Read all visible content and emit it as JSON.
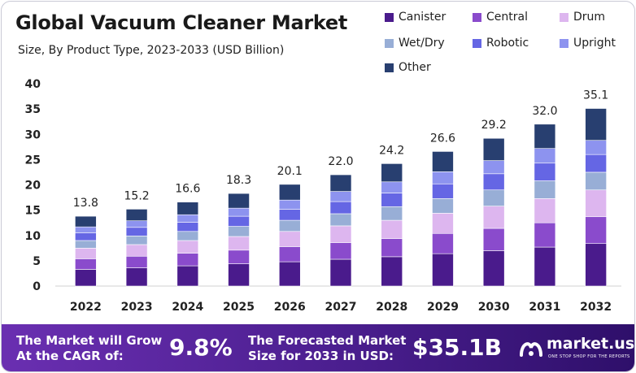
{
  "title": "Global Vacuum Cleaner Market",
  "subtitle": "Size, By Product Type, 2023-2033 (USD Billion)",
  "legend": [
    {
      "label": "Canister",
      "color": "#4a1b8c"
    },
    {
      "label": "Central",
      "color": "#8a4bcc"
    },
    {
      "label": "Drum",
      "color": "#ddb6ef"
    },
    {
      "label": "Wet/Dry",
      "color": "#98aed6"
    },
    {
      "label": "Robotic",
      "color": "#6566e4"
    },
    {
      "label": "Upright",
      "color": "#8d93ef"
    },
    {
      "label": "Other",
      "color": "#283f70"
    }
  ],
  "chart_data": {
    "type": "bar",
    "stacked": true,
    "categories": [
      "2022",
      "2023",
      "2024",
      "2025",
      "2026",
      "2027",
      "2028",
      "2029",
      "2030",
      "2031",
      "2032"
    ],
    "totals": [
      13.8,
      15.2,
      16.6,
      18.3,
      20.1,
      22.0,
      24.2,
      26.6,
      29.2,
      32.0,
      35.1
    ],
    "total_labels": [
      "13.8",
      "15.2",
      "16.6",
      "18.3",
      "20.1",
      "22.0",
      "24.2",
      "26.6",
      "29.2",
      "32.0",
      "35.1"
    ],
    "series": [
      {
        "name": "Canister",
        "color": "#4a1b8c",
        "values": [
          3.3,
          3.6,
          4.0,
          4.4,
          4.8,
          5.3,
          5.8,
          6.4,
          7.0,
          7.7,
          8.4
        ]
      },
      {
        "name": "Central",
        "color": "#8a4bcc",
        "values": [
          2.1,
          2.3,
          2.5,
          2.7,
          3.0,
          3.3,
          3.6,
          4.0,
          4.4,
          4.8,
          5.3
        ]
      },
      {
        "name": "Drum",
        "color": "#ddb6ef",
        "values": [
          2.1,
          2.3,
          2.5,
          2.7,
          3.0,
          3.3,
          3.6,
          4.0,
          4.4,
          4.8,
          5.3
        ]
      },
      {
        "name": "Wet/Dry",
        "color": "#98aed6",
        "values": [
          1.5,
          1.7,
          1.8,
          2.0,
          2.2,
          2.4,
          2.7,
          2.9,
          3.2,
          3.5,
          3.5
        ]
      },
      {
        "name": "Robotic",
        "color": "#6566e4",
        "values": [
          1.5,
          1.7,
          1.8,
          2.0,
          2.2,
          2.4,
          2.7,
          2.9,
          3.2,
          3.5,
          3.5
        ]
      },
      {
        "name": "Upright",
        "color": "#8d93ef",
        "values": [
          1.2,
          1.3,
          1.5,
          1.6,
          1.8,
          2.0,
          2.2,
          2.4,
          2.6,
          2.9,
          2.8
        ]
      },
      {
        "name": "Other",
        "color": "#283f70",
        "values": [
          2.1,
          2.3,
          2.5,
          2.9,
          3.1,
          3.3,
          3.6,
          4.0,
          4.4,
          4.8,
          6.3
        ]
      }
    ],
    "y_ticks": [
      "0",
      "5",
      "10",
      "15",
      "20",
      "25",
      "30",
      "35",
      "40"
    ],
    "ylim": [
      0,
      40
    ],
    "xlabel": "",
    "ylabel": ""
  },
  "footer": {
    "cagr_label_line1": "The Market will Grow",
    "cagr_label_line2": "At the CAGR of:",
    "cagr_value": "9.8%",
    "forecast_label_line1": "The Forecasted Market",
    "forecast_label_line2": "Size for 2033 in USD:",
    "forecast_value": "$35.1B",
    "brand_name": "market.us",
    "brand_tagline": "ONE STOP SHOP FOR THE REPORTS"
  }
}
